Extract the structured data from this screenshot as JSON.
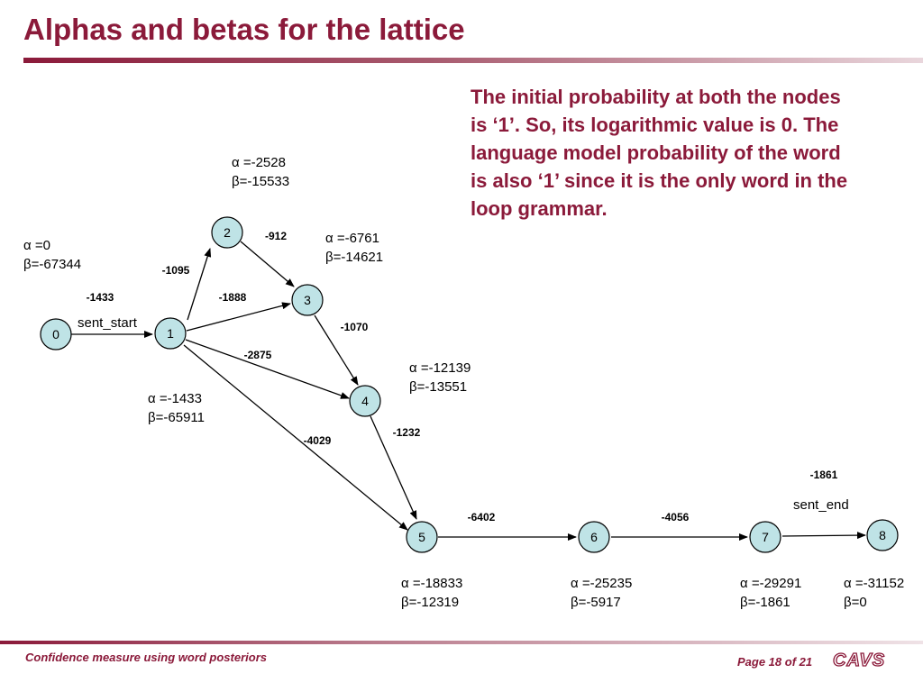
{
  "slide": {
    "title": "Alphas and betas for the lattice",
    "explanation": "The initial probability at both the nodes is ‘1’. So, its logarithmic value is 0. The language model probability of the word is also ‘1’ since it is the only word in the loop grammar."
  },
  "colors": {
    "accent": "#8b1a3a",
    "node_fill": "#bfe3e6"
  },
  "lattice": {
    "nodes": [
      "0",
      "1",
      "2",
      "3",
      "4",
      "5",
      "6",
      "7",
      "8"
    ],
    "arc_labels": {
      "sent_start": "sent_start",
      "sent_end": "sent_end"
    },
    "weights": {
      "w_0_1": "-1433",
      "w_1_2": "-1095",
      "w_2_3": "-912",
      "w_1_3": "-1888",
      "w_1_4": "-2875",
      "w_3_4": "-1070",
      "w_4_5": "-1232",
      "w_1_5": "-4029",
      "w_5_6": "-6402",
      "w_6_7": "-4056",
      "w_7_8": "-1861"
    },
    "node_scores": {
      "n0": {
        "alpha": "α =0",
        "beta": "β=-67344"
      },
      "n1": {
        "alpha": "α =-1433",
        "beta": "β=-65911"
      },
      "n2": {
        "alpha": "α =-2528",
        "beta": "β=-15533"
      },
      "n3": {
        "alpha": "α =-6761",
        "beta": "β=-14621"
      },
      "n4": {
        "alpha": "α =-12139",
        "beta": "β=-13551"
      },
      "n5": {
        "alpha": "α =-18833",
        "beta": "β=-12319"
      },
      "n6": {
        "alpha": "α =-25235",
        "beta": "β=-5917"
      },
      "n7": {
        "alpha": "α =-29291",
        "beta": "β=-1861"
      },
      "n8": {
        "alpha": "α =-31152",
        "beta": "β=0"
      }
    }
  },
  "footer": {
    "left": "Confidence measure using word posteriors",
    "page": "Page 18 of 21",
    "logo": "CAVS"
  }
}
